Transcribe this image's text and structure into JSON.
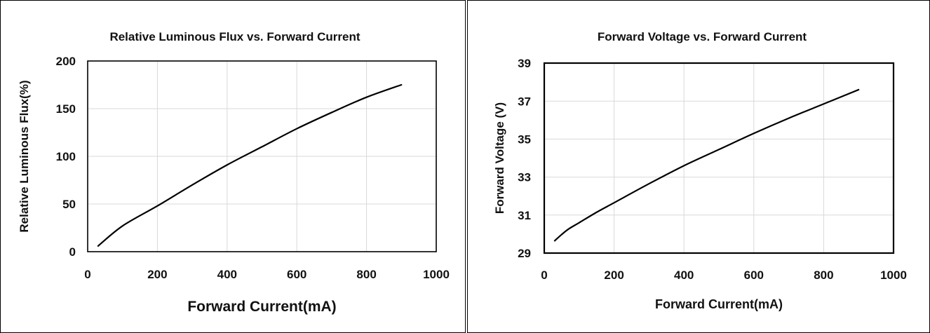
{
  "chart_data": [
    {
      "type": "line",
      "title": "Relative Luminous Flux vs. Forward Current",
      "xlabel": "Forward Current(mA)",
      "ylabel": "Relative Luminous Flux(%)",
      "xlim": [
        0,
        1000
      ],
      "ylim": [
        0,
        200
      ],
      "x_ticks": [
        0,
        200,
        400,
        600,
        800,
        1000
      ],
      "y_ticks": [
        0,
        50,
        100,
        150,
        200
      ],
      "grid": true,
      "legend": "none",
      "series": [
        {
          "x": [
            30,
            100,
            200,
            300,
            400,
            500,
            600,
            700,
            800,
            900
          ],
          "y": [
            6,
            27,
            48,
            70,
            91,
            110,
            129,
            146,
            162,
            175
          ]
        }
      ]
    },
    {
      "type": "line",
      "title": "Forward Voltage vs. Forward Current",
      "xlabel": "Forward Current(mA)",
      "ylabel": "Forward Voltage (V)",
      "xlim": [
        0,
        1000
      ],
      "ylim": [
        29,
        39
      ],
      "x_ticks": [
        0,
        200,
        400,
        600,
        800,
        1000
      ],
      "y_ticks": [
        29,
        31,
        33,
        35,
        37,
        39
      ],
      "grid": true,
      "legend": "none",
      "series": [
        {
          "x": [
            30,
            50,
            70,
            100,
            150,
            200,
            300,
            400,
            500,
            600,
            700,
            800,
            900
          ],
          "y": [
            29.65,
            29.98,
            30.27,
            30.6,
            31.15,
            31.65,
            32.65,
            33.6,
            34.45,
            35.3,
            36.1,
            36.85,
            37.6
          ]
        }
      ]
    }
  ]
}
